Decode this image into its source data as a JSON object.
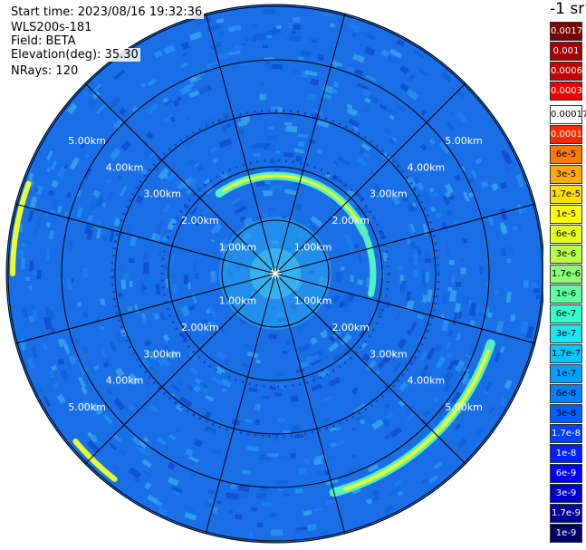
{
  "meta": {
    "start_time": "Start time: 2023/08/16 19:32:36",
    "device": "WLS200s-181",
    "field": "Field: BETA",
    "elevation": "Elevation(deg): 35.30",
    "nrays": "NRays: 120"
  },
  "colorbar": {
    "unit": "-1 sr",
    "upper_block": [
      {
        "label": "0.0017",
        "color": "#7a0000",
        "text": "#ffffff"
      },
      {
        "label": "0.001",
        "color": "#a30000",
        "text": "#ffffff"
      },
      {
        "label": "0.0006",
        "color": "#c80000",
        "text": "#ffffff"
      },
      {
        "label": "0.0003",
        "color": "#ee0000",
        "text": "#ffffff"
      }
    ],
    "lower_block": [
      {
        "label": "0.00017",
        "color": "#ffffff",
        "text": "#000000"
      },
      {
        "label": "0.0001",
        "color": "#ff2a00",
        "text": "#ffffff"
      },
      {
        "label": "6e-5",
        "color": "#ff7a00",
        "text": "#000000"
      },
      {
        "label": "3e-5",
        "color": "#ffaa00",
        "text": "#000000"
      },
      {
        "label": "1.7e-5",
        "color": "#ffdf00",
        "text": "#000000"
      },
      {
        "label": "1e-5",
        "color": "#ffff00",
        "text": "#000000"
      },
      {
        "label": "6e-6",
        "color": "#e6ff1a",
        "text": "#000000"
      },
      {
        "label": "3e-6",
        "color": "#b9ff46",
        "text": "#000000"
      },
      {
        "label": "1.7e-6",
        "color": "#8cff73",
        "text": "#000000"
      },
      {
        "label": "1e-6",
        "color": "#5fffa0",
        "text": "#000000"
      },
      {
        "label": "6e-7",
        "color": "#33ffcc",
        "text": "#000000"
      },
      {
        "label": "3e-7",
        "color": "#1ae6f5",
        "text": "#000000"
      },
      {
        "label": "1.7e-7",
        "color": "#00c8ff",
        "text": "#000000"
      },
      {
        "label": "1e-7",
        "color": "#00a0ff",
        "text": "#000000"
      },
      {
        "label": "6e-8",
        "color": "#0080ff",
        "text": "#000000"
      },
      {
        "label": "3e-8",
        "color": "#0060ff",
        "text": "#000000"
      },
      {
        "label": "1.7e-8",
        "color": "#0040ff",
        "text": "#ffffff"
      },
      {
        "label": "1e-8",
        "color": "#0020ff",
        "text": "#ffffff"
      },
      {
        "label": "6e-9",
        "color": "#0000ff",
        "text": "#ffffff"
      },
      {
        "label": "3e-9",
        "color": "#0000cc",
        "text": "#ffffff"
      },
      {
        "label": "1.7e-9",
        "color": "#000099",
        "text": "#ffffff"
      },
      {
        "label": "1e-9",
        "color": "#000066",
        "text": "#ffffff"
      }
    ]
  },
  "ppi": {
    "ring_labels": [
      "1.00km",
      "2.00km",
      "3.00km",
      "4.00km",
      "5.00km"
    ],
    "background_color": "#1a6fe6",
    "accent_band_color": "#55f0c0",
    "hot_arc_color": "#e8ff30"
  }
}
